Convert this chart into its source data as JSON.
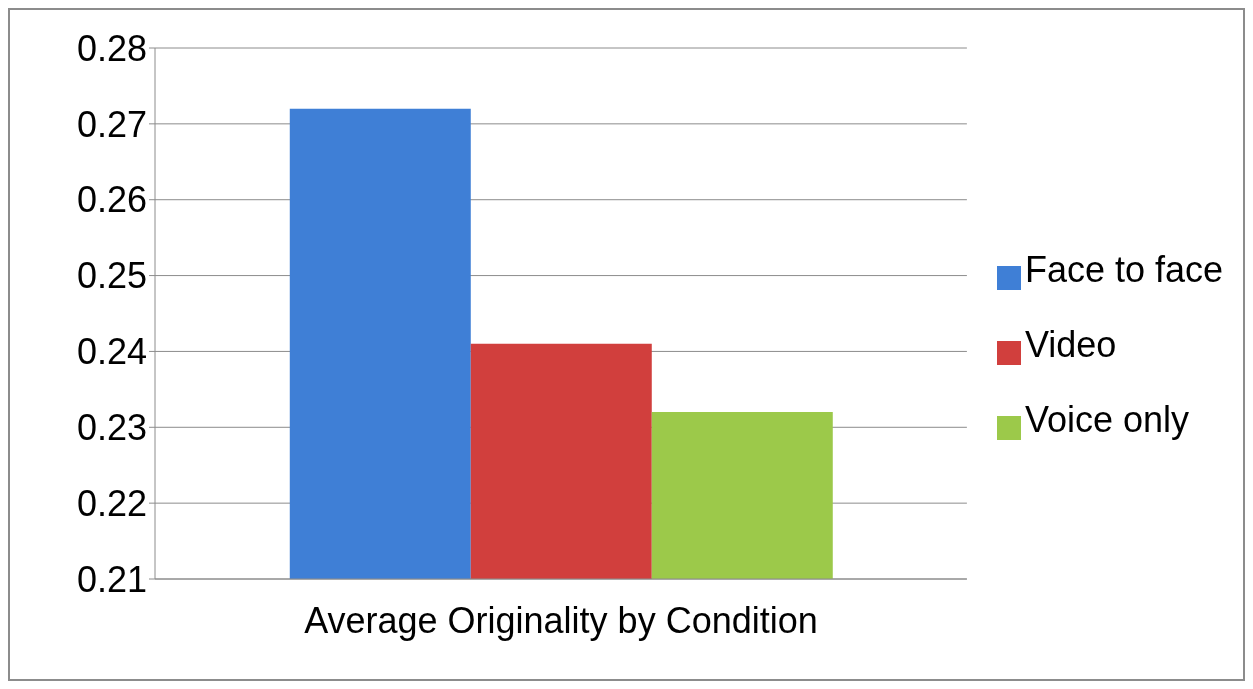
{
  "chart_data": {
    "type": "bar",
    "categories": [
      "Average Originality by Condition"
    ],
    "series": [
      {
        "name": "Face to face",
        "color": "#3f7fd6",
        "values": [
          0.272
        ]
      },
      {
        "name": "Video",
        "color": "#d13f3d",
        "values": [
          0.241
        ]
      },
      {
        "name": "Voice only",
        "color": "#9cc94a",
        "values": [
          0.232
        ]
      }
    ],
    "ylim": [
      0.21,
      0.28
    ],
    "yticks": [
      0.21,
      0.22,
      0.23,
      0.24,
      0.25,
      0.26,
      0.27,
      0.28
    ],
    "grid": "y",
    "legend": "right"
  }
}
